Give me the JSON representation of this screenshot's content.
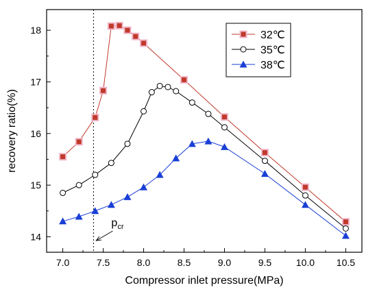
{
  "chart_data": {
    "type": "line",
    "xlabel": "Compressor inlet pressure(MPa)",
    "ylabel": "recovery ratio(%)",
    "xlim": [
      6.8,
      10.7
    ],
    "ylim": [
      13.7,
      18.4
    ],
    "xticks": [
      "7.0",
      "7.5",
      "8.0",
      "8.5",
      "9.0",
      "9.5",
      "10.0",
      "10.5"
    ],
    "yticks": [
      "14",
      "15",
      "16",
      "17",
      "18"
    ],
    "legend_position": "top-right",
    "annotation": {
      "text_main": "p",
      "text_sub": "cr",
      "x": 7.38
    },
    "series": [
      {
        "name": "32℃",
        "color": "#c0392b",
        "marker": "square",
        "x": [
          7.0,
          7.2,
          7.4,
          7.5,
          7.6,
          7.7,
          7.8,
          7.9,
          8.0,
          8.5,
          9.0,
          9.5,
          10.0,
          10.5
        ],
        "y": [
          15.55,
          15.84,
          16.31,
          16.83,
          18.08,
          18.09,
          18.0,
          17.88,
          17.75,
          17.04,
          16.32,
          15.63,
          14.96,
          14.29
        ]
      },
      {
        "name": "35℃",
        "color": "#000000",
        "marker": "circle",
        "x": [
          7.0,
          7.2,
          7.4,
          7.6,
          7.8,
          8.0,
          8.1,
          8.2,
          8.3,
          8.4,
          8.6,
          8.8,
          9.0,
          9.5,
          10.0,
          10.5
        ],
        "y": [
          14.85,
          15.0,
          15.2,
          15.43,
          15.8,
          16.43,
          16.8,
          16.92,
          16.9,
          16.82,
          16.6,
          16.38,
          16.12,
          15.47,
          14.8,
          14.16
        ]
      },
      {
        "name": "38℃",
        "color": "#1a3fd6",
        "marker": "triangle",
        "x": [
          7.0,
          7.2,
          7.4,
          7.6,
          7.8,
          8.0,
          8.2,
          8.4,
          8.6,
          8.8,
          9.0,
          9.5,
          10.0,
          10.5
        ],
        "y": [
          14.3,
          14.39,
          14.5,
          14.62,
          14.77,
          14.96,
          15.2,
          15.52,
          15.8,
          15.85,
          15.74,
          15.22,
          14.62,
          14.02
        ]
      }
    ]
  }
}
